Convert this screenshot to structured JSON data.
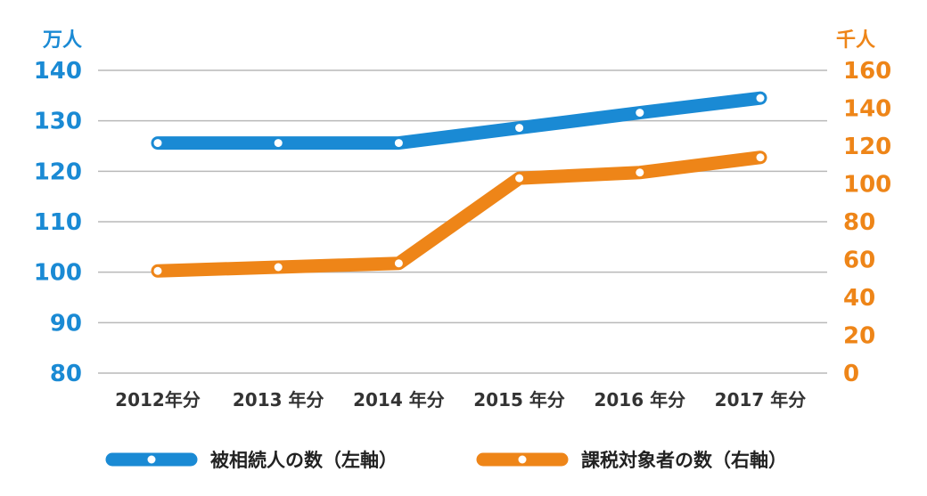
{
  "chart_data": {
    "type": "line",
    "categories": [
      "2012年分",
      "2013 年分",
      "2014 年分",
      "2015 年分",
      "2016 年分",
      "2017 年分"
    ],
    "left_axis": {
      "unit": "万人",
      "ticks": [
        80,
        90,
        100,
        110,
        120,
        130,
        140
      ],
      "range": [
        80,
        140
      ]
    },
    "right_axis": {
      "unit": "千人",
      "ticks": [
        0,
        20,
        40,
        60,
        80,
        100,
        120,
        140,
        160
      ],
      "range": [
        0,
        160
      ]
    },
    "series": [
      {
        "name": "被相続人の数（左軸）",
        "axis": "left",
        "color": "#1a8ad4",
        "values": [
          125.6,
          125.6,
          125.6,
          128.6,
          131.6,
          134.5
        ]
      },
      {
        "name": "課税対象者の数（右軸）",
        "axis": "right",
        "color": "#ee8518",
        "values": [
          54,
          56,
          58,
          103,
          106,
          114
        ]
      }
    ],
    "grid": true,
    "legend": "bottom"
  }
}
